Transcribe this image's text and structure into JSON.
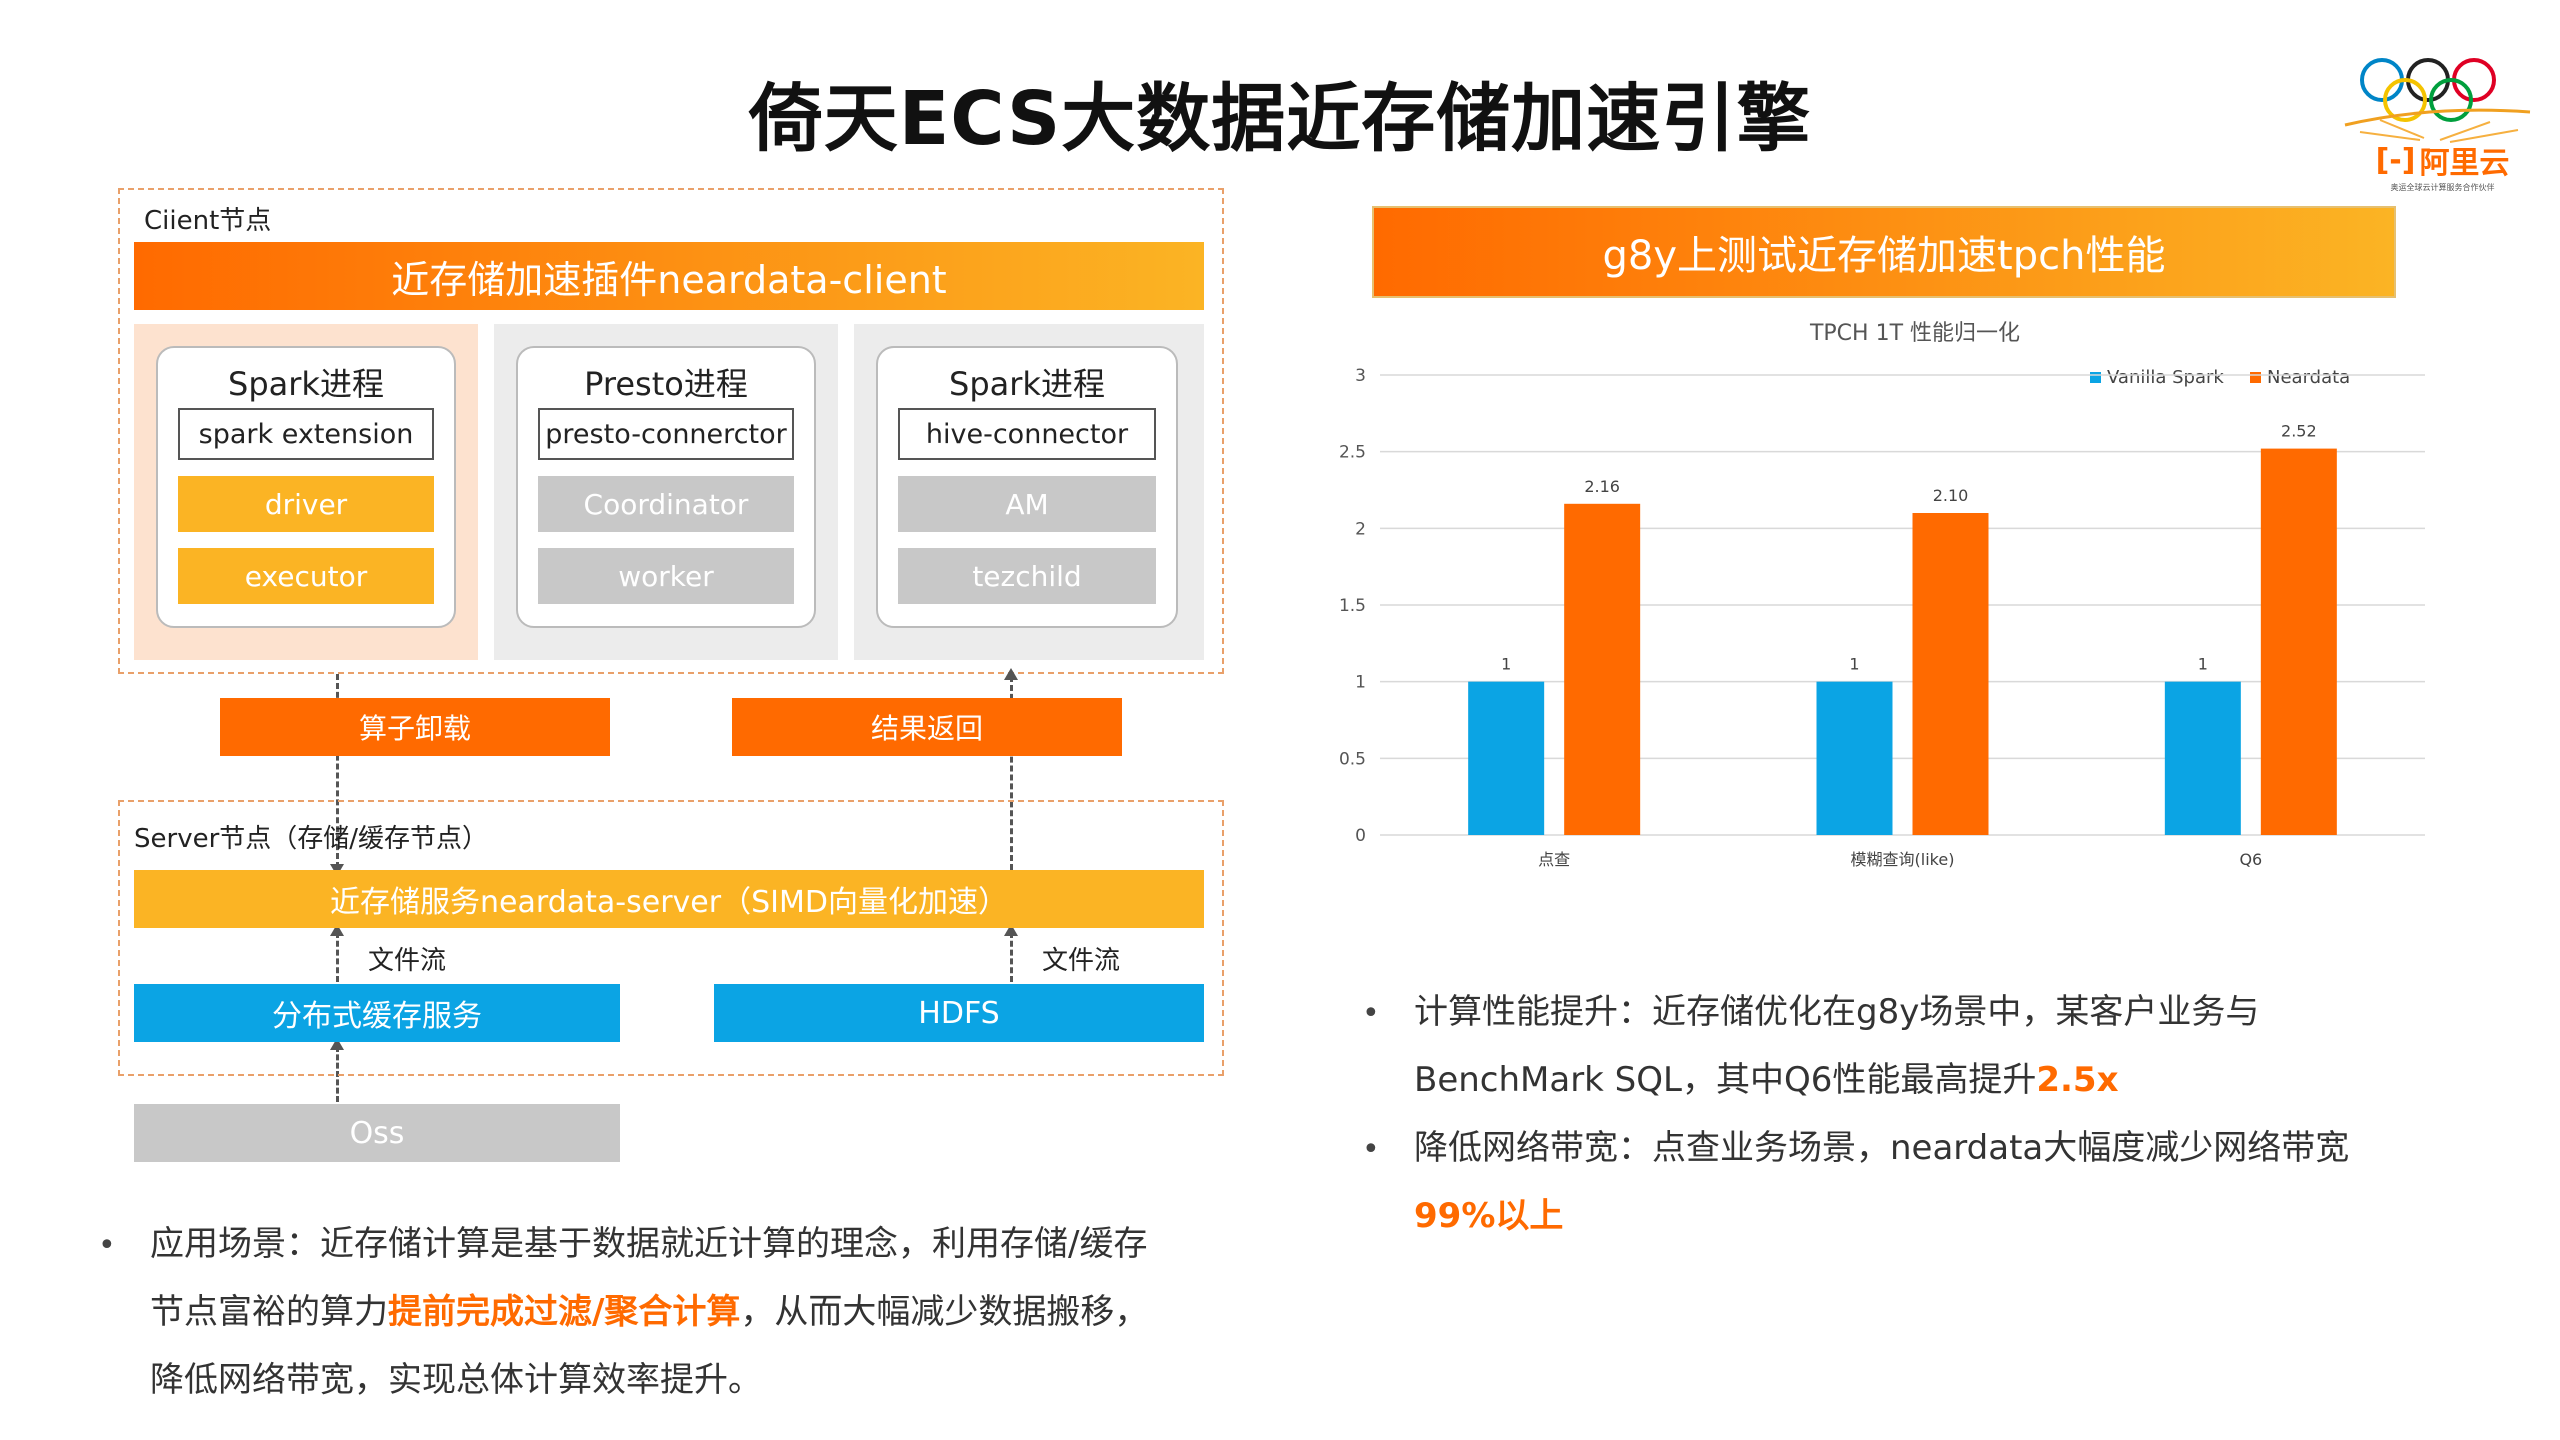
{
  "title": "倚天ECS大数据近存储加速引擎",
  "logo": {
    "text": "阿里云",
    "slogan": "奥运全球云计算服务合作伙伴"
  },
  "colors": {
    "orange": "#ff6a00",
    "yellow": "#fbb424",
    "blue": "#0ba4e4",
    "gray": "#c8c8c8"
  },
  "client": {
    "label": "Ciient节点",
    "plugin": "近存储加速插件neardata-client",
    "processes": [
      {
        "title": "Spark进程",
        "ext": "spark extension",
        "roles": [
          "driver",
          "executor"
        ]
      },
      {
        "title": "Presto进程",
        "ext": "presto-connerctor",
        "roles": [
          "Coordinator",
          "worker"
        ]
      },
      {
        "title": "Spark进程",
        "ext": "hive-connector",
        "roles": [
          "AM",
          "tezchild"
        ]
      }
    ]
  },
  "arrows": {
    "down": "算子卸载",
    "up": "结果返回"
  },
  "server": {
    "label": "Server节点（存储/缓存节点）",
    "service": "近存储服务neardata-server（SIMD向量化加速）",
    "flow_left": "文件流",
    "flow_right": "文件流",
    "cache": "分布式缓存服务",
    "hdfs": "HDFS",
    "oss": "Oss"
  },
  "left_bullet": {
    "prefix": "应用场景：近存储计算是基于数据就近计算的理念，利用存储/缓存节点富裕的算力",
    "highlight": "提前完成过滤/聚合计算",
    "suffix": "，从而大幅减少数据搬移，降低网络带宽，实现总体计算效率提升。"
  },
  "chart_header": "g8y上测试近存储加速tpch性能",
  "chart_data": {
    "type": "bar",
    "title": "TPCH 1T 性能归一化",
    "categories": [
      "点查",
      "模糊查询(like)",
      "Q6"
    ],
    "series": [
      {
        "name": "Vanilla Spark",
        "color": "#0ba4e4",
        "values": [
          1,
          1,
          1
        ],
        "labels": [
          "1",
          "1",
          "1"
        ]
      },
      {
        "name": "Neardata",
        "color": "#ff6a00",
        "values": [
          2.16,
          2.1,
          2.52
        ],
        "labels": [
          "2.16",
          "2.10",
          "2.52"
        ]
      }
    ],
    "ylim": [
      0,
      3
    ],
    "yticks": [
      "0",
      "0.5",
      "1",
      "1.5",
      "2",
      "2.5",
      "3"
    ],
    "grid": true,
    "legend": "top-right"
  },
  "right_bullets": [
    {
      "prefix": "计算性能提升：近存储优化在g8y场景中，某客户业务与BenchMark SQL，其中Q6性能最高提升",
      "highlight": "2.5x"
    },
    {
      "prefix": "降低网络带宽：点查业务场景，neardata大幅度减少网络带宽",
      "highlight": "99%以上"
    }
  ]
}
